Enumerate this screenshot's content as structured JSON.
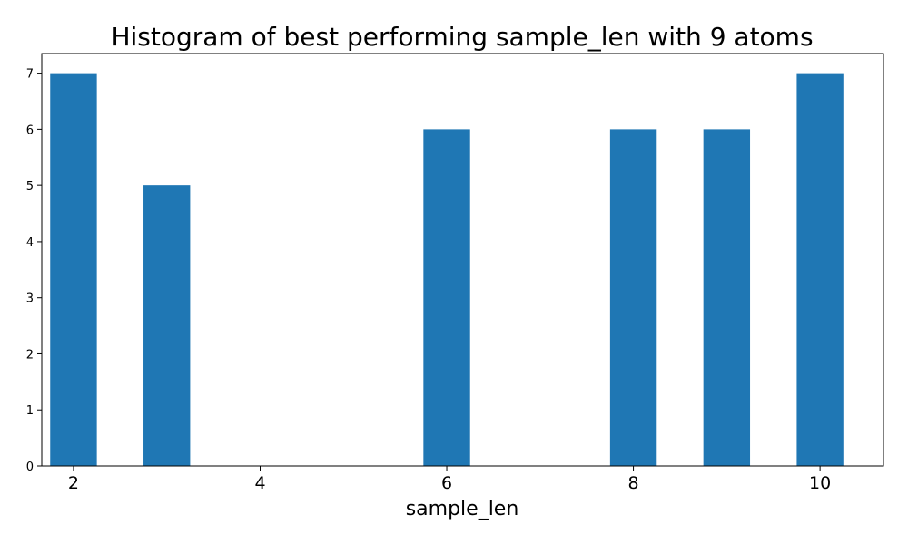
{
  "chart_data": {
    "type": "bar",
    "title": "Histogram of best performing sample_len with 9 atoms",
    "xlabel": "sample_len",
    "ylabel": "",
    "x": [
      2,
      3,
      6,
      8,
      9,
      10
    ],
    "values": [
      7,
      5,
      6,
      6,
      6,
      7
    ],
    "xlim": [
      1.66,
      10.68
    ],
    "ylim": [
      0,
      7.35
    ],
    "xticks": [
      2,
      4,
      6,
      8,
      10
    ],
    "yticks": [
      0,
      1,
      2,
      3,
      4,
      5,
      6,
      7
    ],
    "bar_width": 0.5,
    "color": "#1f77b4",
    "grid": false
  }
}
